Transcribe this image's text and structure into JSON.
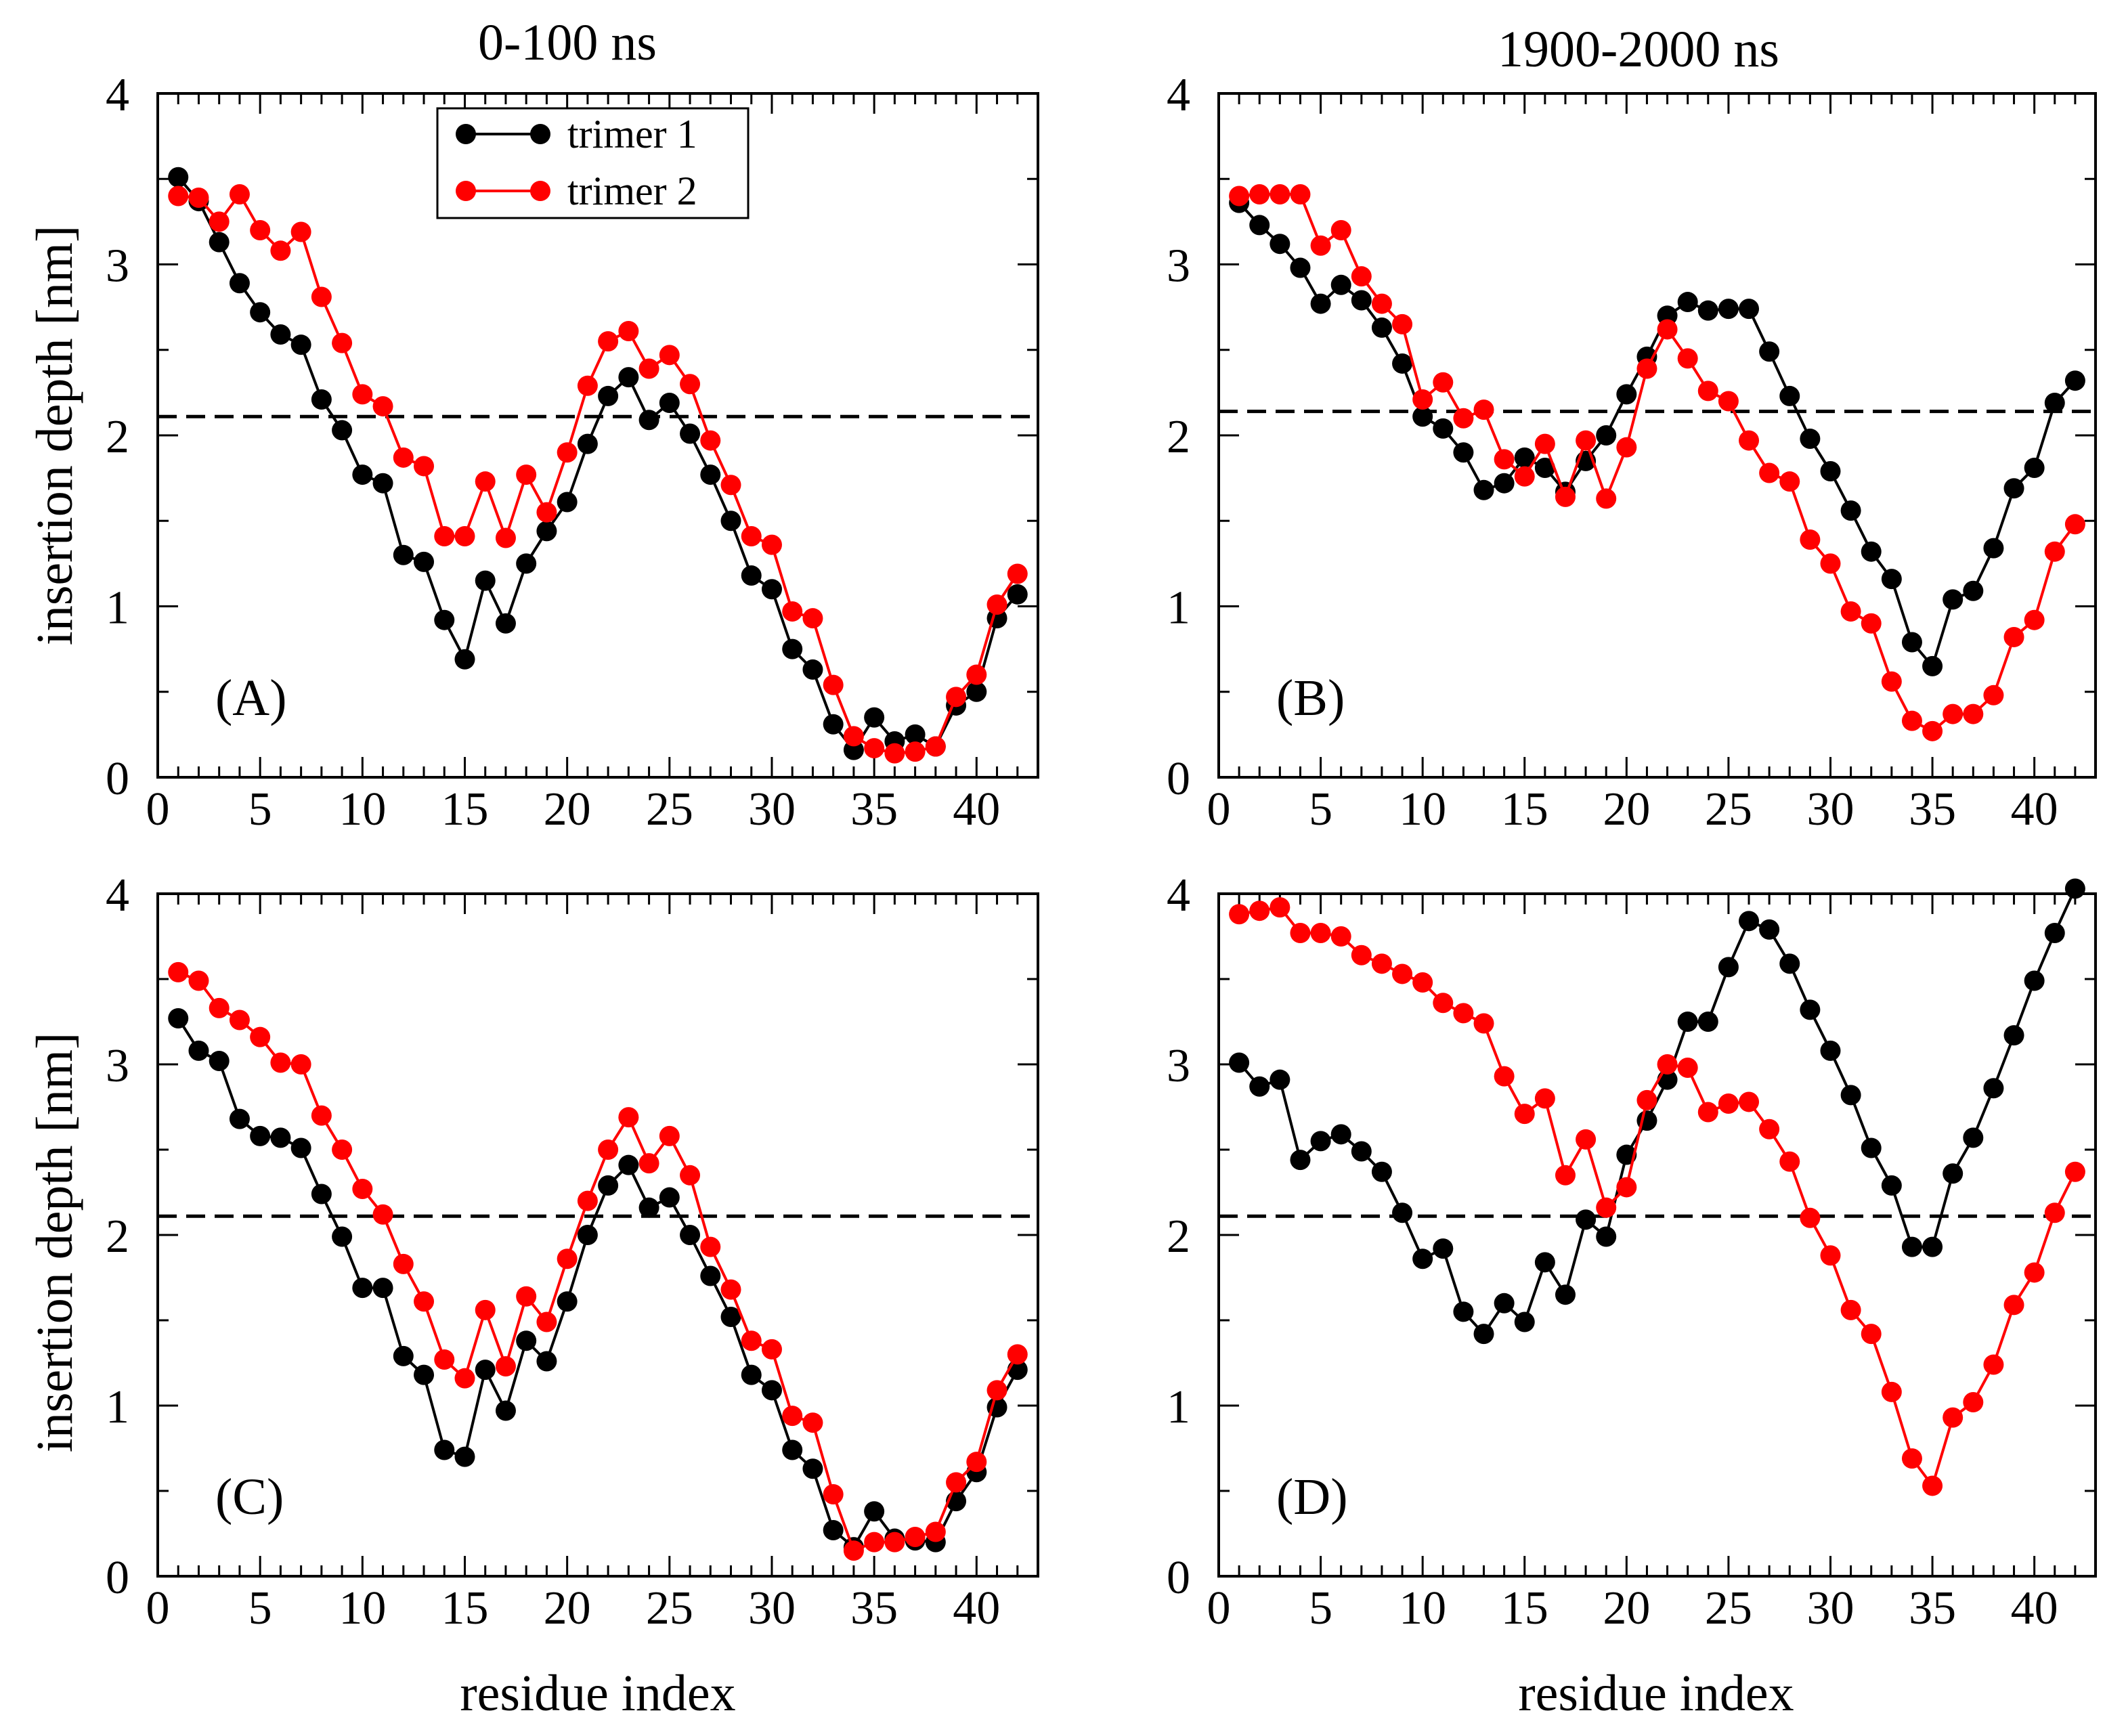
{
  "figure": {
    "col_titles": [
      "0-100 ns",
      "1900-2000 ns"
    ],
    "ylabel": "insertion depth [nm]",
    "xlabel": "residue index",
    "colors": {
      "trimer1": "#000000",
      "trimer2": "#ff0000",
      "threshold": "#000000"
    }
  },
  "chart_data": [
    {
      "type": "line",
      "panel": "(A)",
      "title": "0-100 ns",
      "xlabel": "",
      "ylabel": "insertion depth [nm]",
      "xlim": [
        0,
        43
      ],
      "ylim": [
        0,
        4
      ],
      "xticks": [
        0,
        5,
        10,
        15,
        20,
        25,
        30,
        35,
        40
      ],
      "yticks": [
        0,
        1,
        2,
        3,
        4
      ],
      "threshold": 2.11,
      "legend": {
        "position": "top-center",
        "entries": [
          "trimer 1",
          "trimer 2"
        ]
      },
      "x": [
        1,
        2,
        3,
        4,
        5,
        6,
        7,
        8,
        9,
        10,
        11,
        12,
        13,
        14,
        15,
        16,
        17,
        18,
        19,
        20,
        21,
        22,
        23,
        24,
        25,
        26,
        27,
        28,
        29,
        30,
        31,
        32,
        33,
        34,
        35,
        36,
        37,
        38,
        39,
        40,
        41,
        42
      ],
      "series": [
        {
          "name": "trimer 1",
          "color": "#000000",
          "values": [
            3.51,
            3.37,
            3.13,
            2.89,
            2.72,
            2.59,
            2.53,
            2.21,
            2.03,
            1.77,
            1.72,
            1.3,
            1.26,
            0.92,
            0.69,
            1.15,
            0.9,
            1.25,
            1.44,
            1.61,
            1.95,
            2.23,
            2.34,
            2.09,
            2.19,
            2.01,
            1.77,
            1.5,
            1.18,
            1.1,
            0.75,
            0.63,
            0.31,
            0.16,
            0.35,
            0.21,
            0.25,
            0.18,
            0.42,
            0.5,
            0.93,
            1.07
          ]
        },
        {
          "name": "trimer 2",
          "color": "#ff0000",
          "values": [
            3.4,
            3.39,
            3.25,
            3.41,
            3.2,
            3.08,
            3.19,
            2.81,
            2.54,
            2.24,
            2.17,
            1.87,
            1.82,
            1.41,
            1.41,
            1.73,
            1.4,
            1.77,
            1.55,
            1.9,
            2.29,
            2.55,
            2.61,
            2.39,
            2.47,
            2.3,
            1.97,
            1.71,
            1.41,
            1.36,
            0.97,
            0.93,
            0.54,
            0.24,
            0.17,
            0.14,
            0.15,
            0.18,
            0.47,
            0.6,
            1.01,
            1.19
          ]
        }
      ]
    },
    {
      "type": "line",
      "panel": "(B)",
      "title": "1900-2000 ns",
      "xlabel": "",
      "ylabel": "",
      "xlim": [
        0,
        43
      ],
      "ylim": [
        0,
        4
      ],
      "xticks": [
        0,
        5,
        10,
        15,
        20,
        25,
        30,
        35,
        40
      ],
      "yticks": [
        0,
        1,
        2,
        3,
        4
      ],
      "threshold": 2.14,
      "x": [
        1,
        2,
        3,
        4,
        5,
        6,
        7,
        8,
        9,
        10,
        11,
        12,
        13,
        14,
        15,
        16,
        17,
        18,
        19,
        20,
        21,
        22,
        23,
        24,
        25,
        26,
        27,
        28,
        29,
        30,
        31,
        32,
        33,
        34,
        35,
        36,
        37,
        38,
        39,
        40,
        41,
        42
      ],
      "series": [
        {
          "name": "trimer 1",
          "color": "#000000",
          "values": [
            3.36,
            3.23,
            3.12,
            2.98,
            2.77,
            2.88,
            2.79,
            2.63,
            2.42,
            2.11,
            2.04,
            1.9,
            1.68,
            1.72,
            1.87,
            1.81,
            1.67,
            1.85,
            2.0,
            2.24,
            2.46,
            2.7,
            2.78,
            2.73,
            2.74,
            2.74,
            2.49,
            2.23,
            1.98,
            1.79,
            1.56,
            1.32,
            1.16,
            0.79,
            0.65,
            1.04,
            1.09,
            1.34,
            1.69,
            1.81,
            2.19,
            2.32
          ]
        },
        {
          "name": "trimer 2",
          "color": "#ff0000",
          "values": [
            3.4,
            3.41,
            3.41,
            3.41,
            3.11,
            3.2,
            2.93,
            2.77,
            2.65,
            2.21,
            2.31,
            2.1,
            2.15,
            1.86,
            1.76,
            1.95,
            1.64,
            1.97,
            1.63,
            1.93,
            2.39,
            2.62,
            2.45,
            2.26,
            2.2,
            1.97,
            1.78,
            1.73,
            1.39,
            1.25,
            0.97,
            0.9,
            0.56,
            0.33,
            0.27,
            0.37,
            0.37,
            0.48,
            0.82,
            0.92,
            1.32,
            1.48
          ]
        }
      ]
    },
    {
      "type": "line",
      "panel": "(C)",
      "title": "",
      "xlabel": "residue index",
      "ylabel": "insertion depth [nm]",
      "xlim": [
        0,
        43
      ],
      "ylim": [
        0,
        4
      ],
      "xticks": [
        0,
        5,
        10,
        15,
        20,
        25,
        30,
        35,
        40
      ],
      "yticks": [
        0,
        1,
        2,
        3,
        4
      ],
      "threshold": 2.11,
      "x": [
        1,
        2,
        3,
        4,
        5,
        6,
        7,
        8,
        9,
        10,
        11,
        12,
        13,
        14,
        15,
        16,
        17,
        18,
        19,
        20,
        21,
        22,
        23,
        24,
        25,
        26,
        27,
        28,
        29,
        30,
        31,
        32,
        33,
        34,
        35,
        36,
        37,
        38,
        39,
        40,
        41,
        42
      ],
      "series": [
        {
          "name": "trimer 1",
          "color": "#000000",
          "values": [
            3.27,
            3.08,
            3.02,
            2.68,
            2.58,
            2.57,
            2.51,
            2.24,
            1.99,
            1.69,
            1.69,
            1.29,
            1.18,
            0.74,
            0.7,
            1.21,
            0.97,
            1.38,
            1.26,
            1.61,
            2.0,
            2.29,
            2.41,
            2.16,
            2.22,
            2.0,
            1.76,
            1.52,
            1.18,
            1.09,
            0.74,
            0.63,
            0.27,
            0.17,
            0.38,
            0.22,
            0.21,
            0.2,
            0.44,
            0.61,
            0.99,
            1.21
          ]
        },
        {
          "name": "trimer 2",
          "color": "#ff0000",
          "values": [
            3.54,
            3.49,
            3.33,
            3.26,
            3.16,
            3.01,
            3.0,
            2.7,
            2.5,
            2.27,
            2.12,
            1.83,
            1.61,
            1.27,
            1.16,
            1.56,
            1.23,
            1.64,
            1.49,
            1.86,
            2.2,
            2.5,
            2.69,
            2.42,
            2.58,
            2.35,
            1.93,
            1.68,
            1.38,
            1.33,
            0.94,
            0.9,
            0.48,
            0.15,
            0.2,
            0.2,
            0.23,
            0.26,
            0.55,
            0.67,
            1.09,
            1.3
          ]
        }
      ]
    },
    {
      "type": "line",
      "panel": "(D)",
      "title": "",
      "xlabel": "residue index",
      "ylabel": "",
      "xlim": [
        0,
        43
      ],
      "ylim": [
        0,
        4
      ],
      "xticks": [
        0,
        5,
        10,
        15,
        20,
        25,
        30,
        35,
        40
      ],
      "yticks": [
        0,
        1,
        2,
        3,
        4
      ],
      "threshold": 2.11,
      "x": [
        1,
        2,
        3,
        4,
        5,
        6,
        7,
        8,
        9,
        10,
        11,
        12,
        13,
        14,
        15,
        16,
        17,
        18,
        19,
        20,
        21,
        22,
        23,
        24,
        25,
        26,
        27,
        28,
        29,
        30,
        31,
        32,
        33,
        34,
        35,
        36,
        37,
        38,
        39,
        40,
        41,
        42
      ],
      "series": [
        {
          "name": "trimer 1",
          "color": "#000000",
          "values": [
            3.01,
            2.87,
            2.91,
            2.44,
            2.55,
            2.59,
            2.49,
            2.37,
            2.13,
            1.86,
            1.92,
            1.55,
            1.42,
            1.6,
            1.49,
            1.84,
            1.65,
            2.09,
            1.99,
            2.47,
            2.67,
            2.91,
            3.25,
            3.25,
            3.57,
            3.84,
            3.79,
            3.59,
            3.32,
            3.08,
            2.82,
            2.51,
            2.29,
            1.93,
            1.93,
            2.36,
            2.57,
            2.86,
            3.17,
            3.49,
            3.77,
            4.03
          ]
        },
        {
          "name": "trimer 2",
          "color": "#ff0000",
          "values": [
            3.88,
            3.9,
            3.92,
            3.77,
            3.77,
            3.75,
            3.64,
            3.59,
            3.53,
            3.48,
            3.36,
            3.3,
            3.24,
            2.93,
            2.71,
            2.8,
            2.35,
            2.56,
            2.16,
            2.28,
            2.79,
            3.0,
            2.98,
            2.72,
            2.77,
            2.78,
            2.62,
            2.43,
            2.1,
            1.88,
            1.56,
            1.42,
            1.08,
            0.69,
            0.53,
            0.93,
            1.02,
            1.24,
            1.59,
            1.78,
            2.13,
            2.37
          ]
        }
      ]
    }
  ]
}
